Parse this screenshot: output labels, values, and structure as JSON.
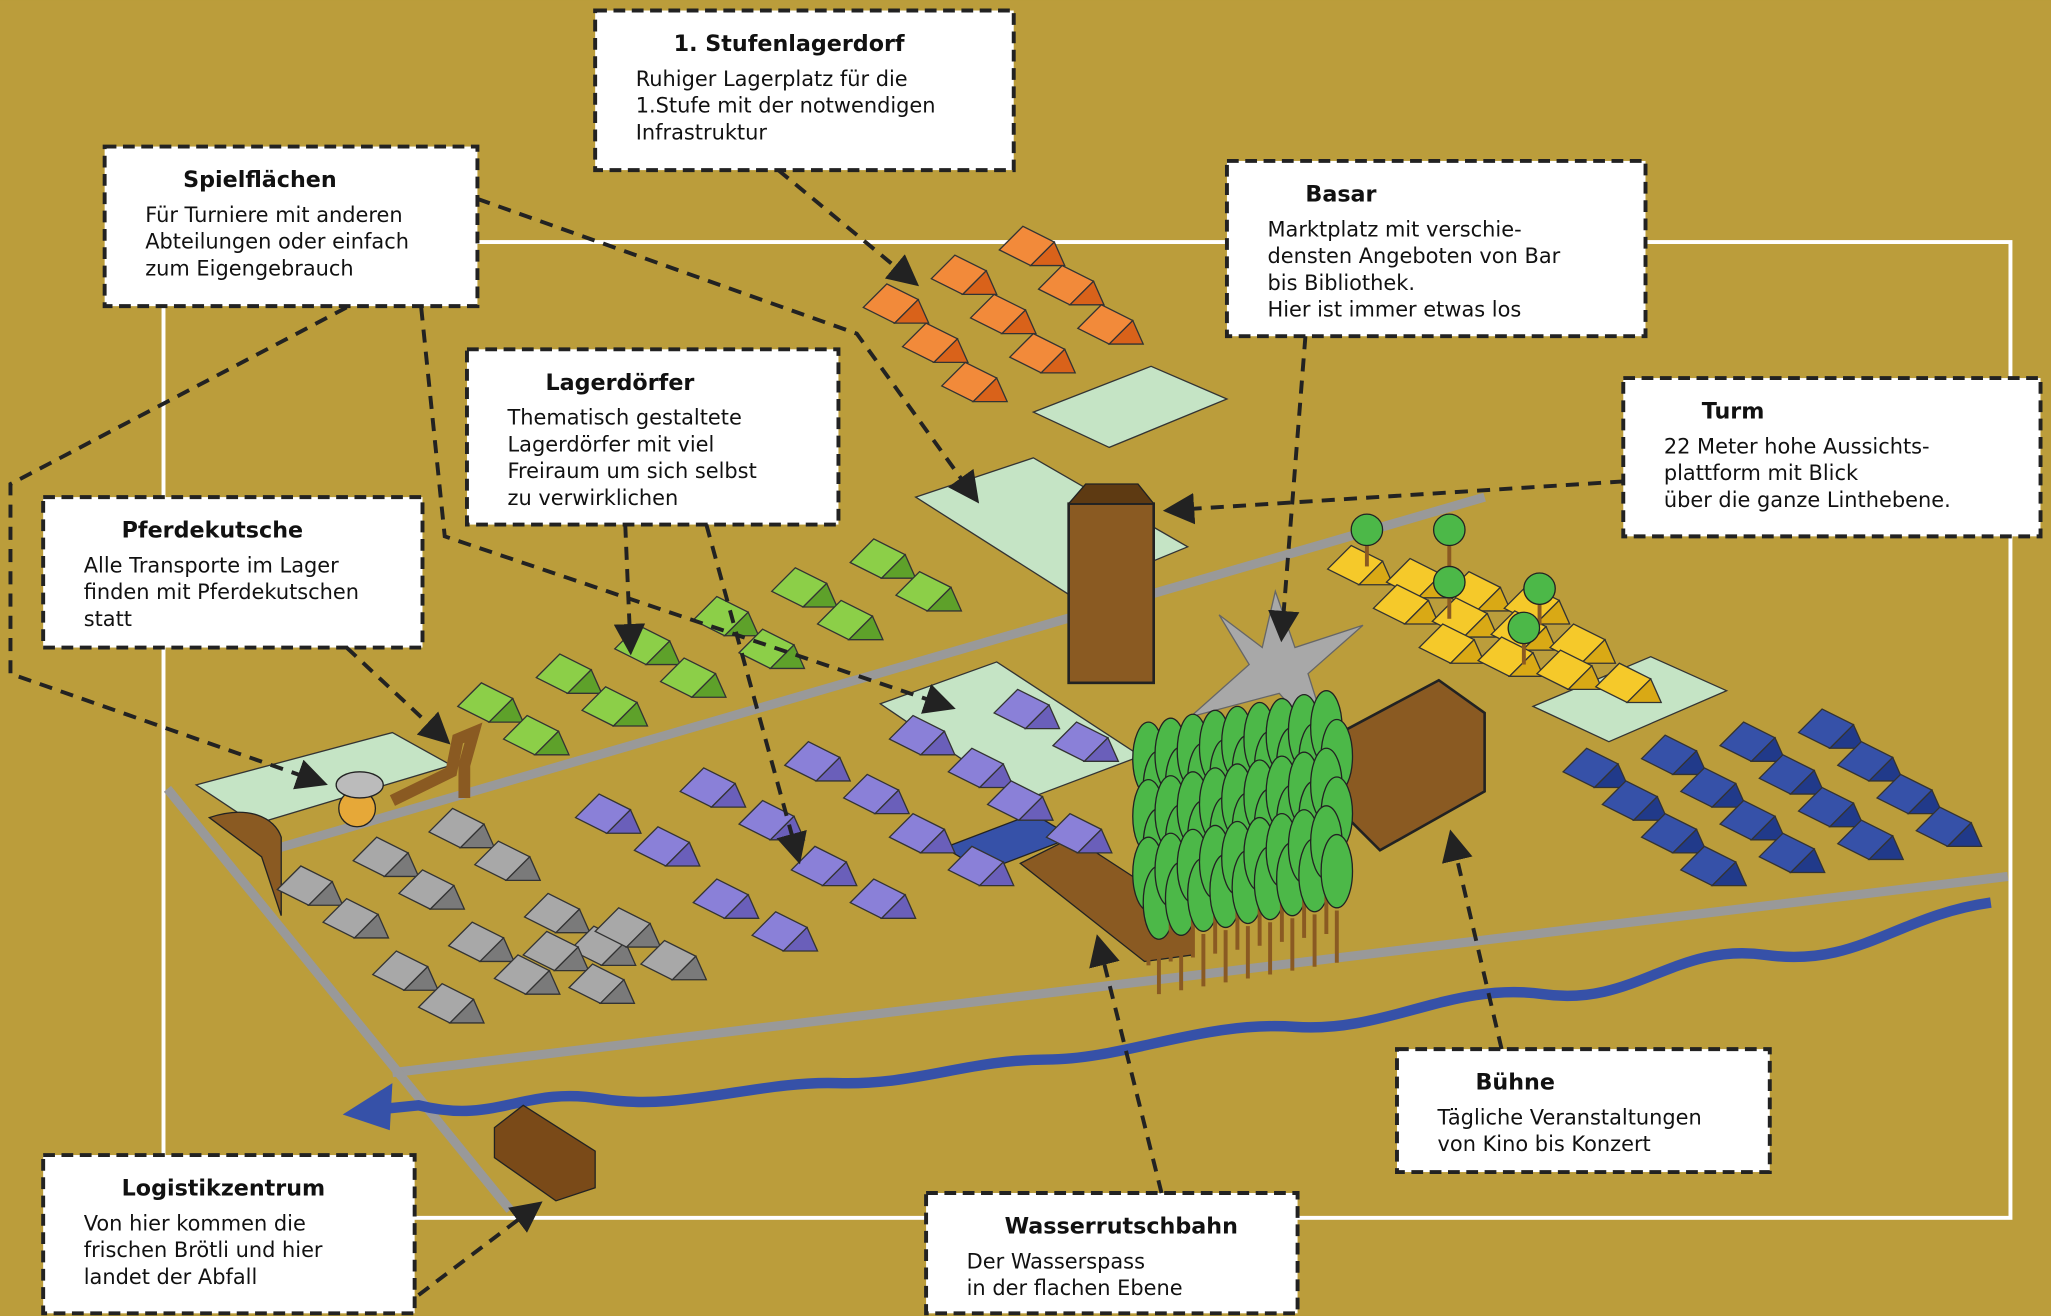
{
  "callouts": [
    {
      "title": "1. Stufenlagerdorf",
      "lines": [
        "Ruhiger Lagerplatz für die",
        "1.Stufe mit der notwendigen",
        "Infrastruktur"
      ]
    },
    {
      "title": "Spielflächen",
      "lines": [
        "Für Turniere mit anderen",
        "Abteilungen oder einfach",
        "zum Eigengebrauch"
      ]
    },
    {
      "title": "Basar",
      "lines": [
        "Marktplatz mit verschie-",
        "densten Angeboten von Bar",
        "bis Bibliothek.",
        "Hier ist immer etwas los"
      ]
    },
    {
      "title": "Lagerdörfer",
      "lines": [
        "Thematisch gestaltete",
        "Lagerdörfer mit viel",
        "Freiraum um sich selbst",
        "zu verwirklichen"
      ]
    },
    {
      "title": "Turm",
      "lines": [
        "22 Meter hohe Aussichts-",
        "plattform mit Blick",
        "über die ganze Linthebene."
      ]
    },
    {
      "title": "Pferdekutsche",
      "lines": [
        "Alle Transporte im Lager",
        "finden mit Pferdekutschen",
        "statt"
      ]
    },
    {
      "title": "Bühne",
      "lines": [
        "Tägliche Veranstaltungen",
        "von Kino bis Konzert"
      ]
    },
    {
      "title": "Logistikzentrum",
      "lines": [
        "Von hier kommen die",
        "frischen Brötli und hier",
        "landet der Abfall"
      ]
    },
    {
      "title": "Wasserrutschbahn",
      "lines": [
        "Der Wasserspass",
        "in der flachen Ebene"
      ]
    }
  ]
}
